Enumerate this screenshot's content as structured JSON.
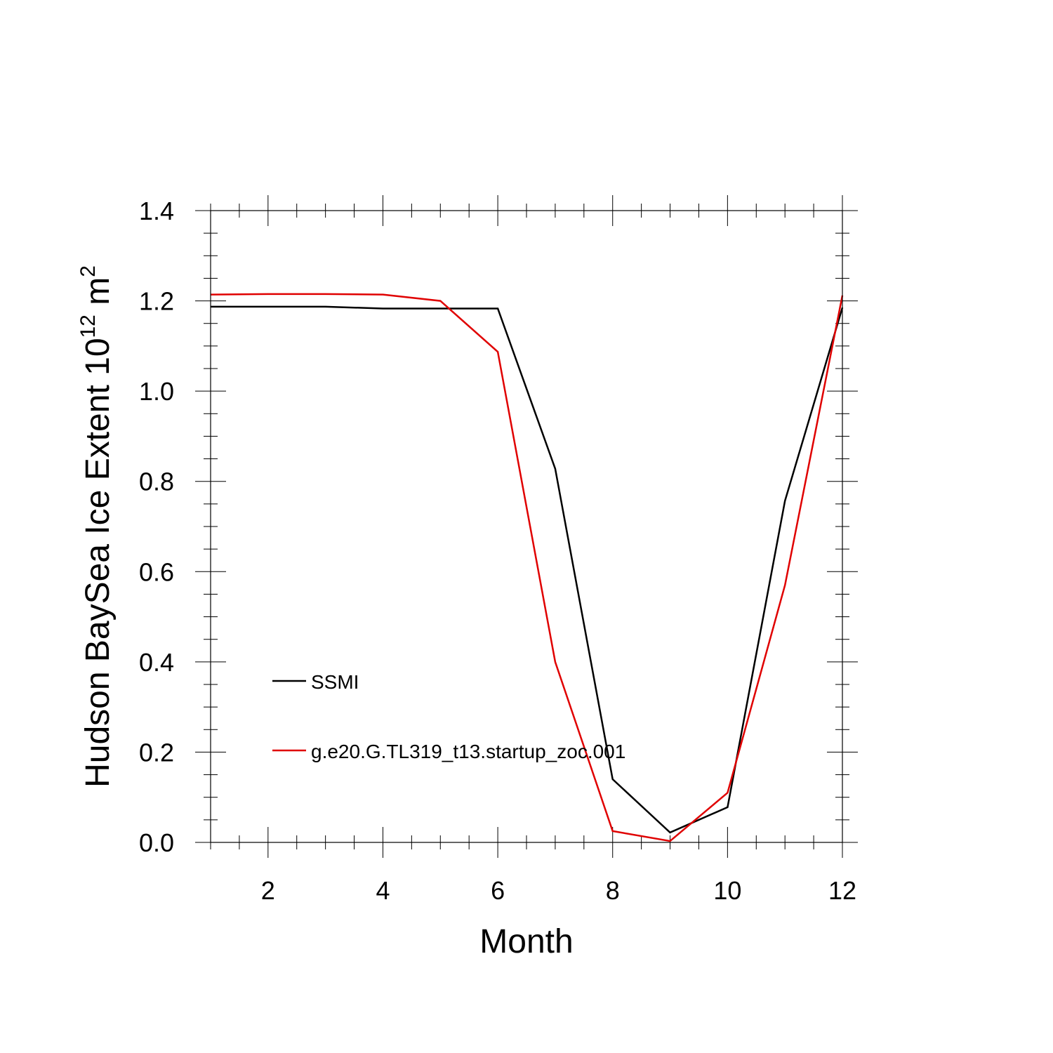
{
  "chart_data": {
    "type": "line",
    "title": "",
    "xlabel": "Month",
    "ylabel_main": "Hudson BaySea Ice Extent 10",
    "ylabel_exp": "12",
    "ylabel_unit": " m",
    "ylabel_unit_exp": "2",
    "xlim": [
      1,
      12
    ],
    "ylim": [
      0.0,
      1.4
    ],
    "x_ticks": [
      2,
      4,
      6,
      8,
      10,
      12
    ],
    "x_tick_labels": [
      "2",
      "4",
      "6",
      "8",
      "10",
      "12"
    ],
    "y_ticks": [
      0.0,
      0.2,
      0.4,
      0.6,
      0.8,
      1.0,
      1.2,
      1.4
    ],
    "y_tick_labels": [
      "0.0",
      "0.2",
      "0.4",
      "0.6",
      "0.8",
      "1.0",
      "1.2",
      "1.4"
    ],
    "grid": false,
    "legend_position": "lower-left",
    "x": [
      1,
      2,
      3,
      4,
      5,
      6,
      7,
      8,
      9,
      10,
      11,
      12
    ],
    "series": [
      {
        "name": "SSMI",
        "color": "#000000",
        "values": [
          1.187,
          1.187,
          1.187,
          1.183,
          1.183,
          1.183,
          0.828,
          0.14,
          0.022,
          0.078,
          0.757,
          1.185
        ]
      },
      {
        "name": "g.e20.G.TL319_t13.startup_zoc.001",
        "color": "#e00000",
        "values": [
          1.214,
          1.215,
          1.215,
          1.214,
          1.2,
          1.087,
          0.4,
          0.025,
          0.003,
          0.11,
          0.57,
          1.212
        ]
      }
    ]
  }
}
